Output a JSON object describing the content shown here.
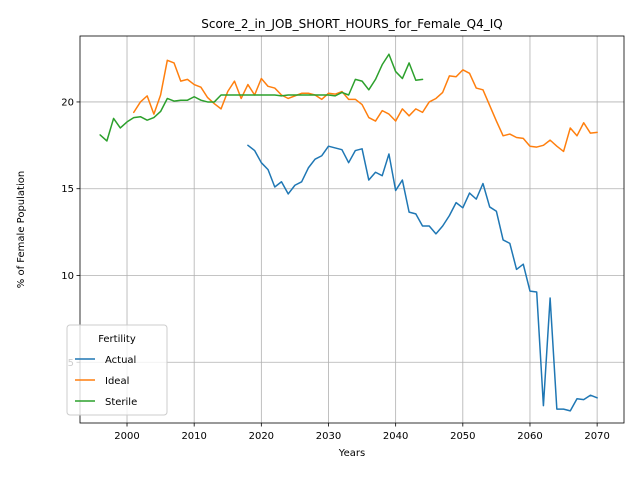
{
  "chart_data": {
    "type": "line",
    "title": "Score_2_in_JOB_SHORT_HOURS_for_Female_Q4_IQ",
    "xlabel": "Years",
    "ylabel": "% of Female Population",
    "xlim": [
      1993,
      2074
    ],
    "ylim": [
      1.5,
      23.8
    ],
    "x_ticks": [
      2000,
      2010,
      2020,
      2030,
      2040,
      2050,
      2060,
      2070
    ],
    "y_ticks": [
      5,
      10,
      15,
      20
    ],
    "grid": true,
    "legend": {
      "title": "Fertility",
      "placement": "lower-left"
    },
    "series": [
      {
        "name": "Actual",
        "color": "#1f77b4",
        "x": [
          2018,
          2019,
          2020,
          2021,
          2022,
          2023,
          2024,
          2025,
          2026,
          2027,
          2028,
          2029,
          2030,
          2031,
          2032,
          2033,
          2034,
          2035,
          2036,
          2037,
          2038,
          2039,
          2040,
          2041,
          2042,
          2043,
          2044,
          2045,
          2046,
          2047,
          2048,
          2049,
          2050,
          2051,
          2052,
          2053,
          2054,
          2055,
          2056,
          2057,
          2058,
          2059,
          2060,
          2061,
          2062,
          2063,
          2064,
          2065,
          2066,
          2067,
          2068,
          2069,
          2070
        ],
        "values": [
          17.5,
          17.2,
          16.5,
          16.1,
          15.1,
          15.4,
          14.7,
          15.2,
          15.4,
          16.2,
          16.7,
          16.9,
          17.45,
          17.35,
          17.25,
          16.5,
          17.2,
          17.3,
          15.5,
          15.95,
          15.75,
          17.0,
          14.9,
          15.5,
          13.65,
          13.55,
          12.85,
          12.85,
          12.4,
          12.85,
          13.45,
          14.2,
          13.9,
          14.75,
          14.4,
          15.3,
          13.95,
          13.7,
          12.05,
          11.85,
          10.35,
          10.65,
          9.1,
          9.05,
          2.5,
          8.7,
          2.3,
          2.3,
          2.2,
          2.9,
          2.85,
          3.1,
          2.95
        ]
      },
      {
        "name": "Ideal",
        "color": "#ff7f0e",
        "x": [
          2001,
          2002,
          2003,
          2004,
          2005,
          2006,
          2007,
          2008,
          2009,
          2010,
          2011,
          2012,
          2013,
          2014,
          2015,
          2016,
          2017,
          2018,
          2019,
          2020,
          2021,
          2022,
          2023,
          2024,
          2025,
          2026,
          2027,
          2028,
          2029,
          2030,
          2031,
          2032,
          2033,
          2034,
          2035,
          2036,
          2037,
          2038,
          2039,
          2040,
          2041,
          2042,
          2043,
          2044,
          2045,
          2046,
          2047,
          2048,
          2049,
          2050,
          2051,
          2052,
          2053,
          2054,
          2055,
          2056,
          2057,
          2058,
          2059,
          2060,
          2061,
          2062,
          2063,
          2064,
          2065,
          2066,
          2067,
          2068,
          2069,
          2070
        ],
        "values": [
          19.4,
          20.0,
          20.35,
          19.3,
          20.4,
          22.4,
          22.25,
          21.2,
          21.3,
          21.0,
          20.85,
          20.25,
          19.9,
          19.6,
          20.6,
          21.2,
          20.2,
          21.0,
          20.4,
          21.35,
          20.9,
          20.8,
          20.4,
          20.2,
          20.35,
          20.5,
          20.5,
          20.4,
          20.15,
          20.5,
          20.45,
          20.6,
          20.15,
          20.15,
          19.85,
          19.1,
          18.9,
          19.5,
          19.3,
          18.9,
          19.6,
          19.2,
          19.6,
          19.4,
          20.0,
          20.2,
          20.55,
          21.5,
          21.45,
          21.85,
          21.65,
          20.8,
          20.7,
          19.8,
          18.9,
          18.05,
          18.15,
          17.95,
          17.9,
          17.45,
          17.4,
          17.5,
          17.8,
          17.45,
          17.15,
          18.5,
          18.05,
          18.8,
          18.2,
          18.25
        ]
      },
      {
        "name": "Sterile",
        "color": "#2ca02c",
        "x": [
          1996,
          1997,
          1998,
          1999,
          2000,
          2001,
          2002,
          2003,
          2004,
          2005,
          2006,
          2007,
          2008,
          2009,
          2010,
          2011,
          2012,
          2013,
          2014,
          2015,
          2016,
          2017,
          2018,
          2019,
          2020,
          2021,
          2022,
          2023,
          2024,
          2025,
          2026,
          2027,
          2028,
          2029,
          2030,
          2031,
          2032,
          2033,
          2034,
          2035,
          2036,
          2037,
          2038,
          2039,
          2040,
          2041,
          2042,
          2043,
          2044
        ],
        "values": [
          18.1,
          17.75,
          19.05,
          18.5,
          18.85,
          19.1,
          19.15,
          18.95,
          19.1,
          19.45,
          20.2,
          20.05,
          20.1,
          20.1,
          20.3,
          20.1,
          20.0,
          20.0,
          20.4,
          20.4,
          20.4,
          20.4,
          20.4,
          20.4,
          20.4,
          20.4,
          20.4,
          20.35,
          20.4,
          20.4,
          20.4,
          20.4,
          20.4,
          20.4,
          20.4,
          20.35,
          20.55,
          20.4,
          21.3,
          21.2,
          20.7,
          21.3,
          22.15,
          22.75,
          21.75,
          21.35,
          22.25,
          21.25,
          21.3
        ]
      }
    ]
  }
}
